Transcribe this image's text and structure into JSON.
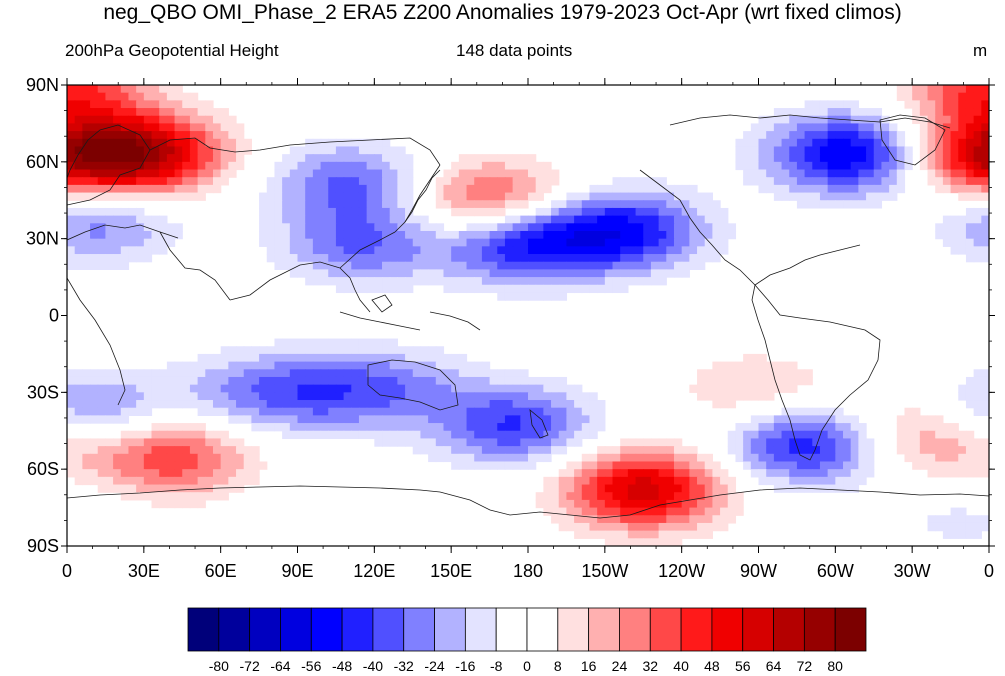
{
  "title": "neg_QBO OMI_Phase_2 ERA5 Z200 Anomalies 1979-2023 Oct-Apr (wrt fixed climos)",
  "subtitle_left": "200hPa Geopotential Height",
  "subtitle_center": "148 data points",
  "subtitle_right": "m",
  "y_ticks": [
    "90N",
    "60N",
    "30N",
    "0",
    "30S",
    "60S",
    "90S"
  ],
  "x_ticks": [
    "0",
    "30E",
    "60E",
    "90E",
    "120E",
    "150E",
    "180",
    "150W",
    "120W",
    "90W",
    "60W",
    "30W",
    "0"
  ],
  "colorbar": {
    "labels": [
      "-80",
      "-72",
      "-64",
      "-56",
      "-48",
      "-40",
      "-32",
      "-24",
      "-16",
      "-8",
      "0",
      "8",
      "16",
      "24",
      "32",
      "40",
      "48",
      "56",
      "64",
      "72",
      "80"
    ],
    "colors": [
      "#00007a",
      "#00009c",
      "#0000c0",
      "#0000e0",
      "#0000ff",
      "#2020ff",
      "#5050ff",
      "#8080ff",
      "#b2b2ff",
      "#e3e3ff",
      "#ffffff",
      "#ffffff",
      "#ffe0e0",
      "#ffb0b0",
      "#ff8080",
      "#ff4848",
      "#ff1a1a",
      "#f00000",
      "#d60000",
      "#b40000",
      "#960000",
      "#7c0000"
    ]
  },
  "map_data": {
    "type": "contour_fill_map",
    "projection": "cylindrical_equidistant",
    "lon_range": [
      0,
      360
    ],
    "lat_range": [
      -90,
      90
    ],
    "units": "m",
    "features": [
      {
        "lon": 30,
        "lat": 63,
        "amp": 64
      },
      {
        "lon": 0,
        "lat": 88,
        "amp": 40
      },
      {
        "lon": 358,
        "lat": 62,
        "amp": 50
      },
      {
        "lon": 165,
        "lat": 45,
        "amp": 40
      },
      {
        "lon": 110,
        "lat": 52,
        "amp": -32
      },
      {
        "lon": 115,
        "lat": 28,
        "amp": -32
      },
      {
        "lon": 178,
        "lat": 28,
        "amp": -48
      },
      {
        "lon": 218,
        "lat": 33,
        "amp": -48
      },
      {
        "lon": 305,
        "lat": 63,
        "amp": -56
      },
      {
        "lon": 12,
        "lat": 36,
        "amp": -28
      },
      {
        "lon": 10,
        "lat": -37,
        "amp": -28
      },
      {
        "lon": 70,
        "lat": -30,
        "amp": -20
      },
      {
        "lon": 100,
        "lat": -30,
        "amp": -26
      },
      {
        "lon": 130,
        "lat": -28,
        "amp": -20
      },
      {
        "lon": 175,
        "lat": -43,
        "amp": -40
      },
      {
        "lon": 40,
        "lat": -55,
        "amp": 40
      },
      {
        "lon": 225,
        "lat": -68,
        "amp": 60
      },
      {
        "lon": 290,
        "lat": -50,
        "amp": -50
      },
      {
        "lon": 270,
        "lat": -30,
        "amp": 18
      },
      {
        "lon": 320,
        "lat": -45,
        "amp": 15
      },
      {
        "lon": 345,
        "lat": -50,
        "amp": 18
      },
      {
        "lon": 350,
        "lat": -80,
        "amp": -10
      }
    ]
  }
}
